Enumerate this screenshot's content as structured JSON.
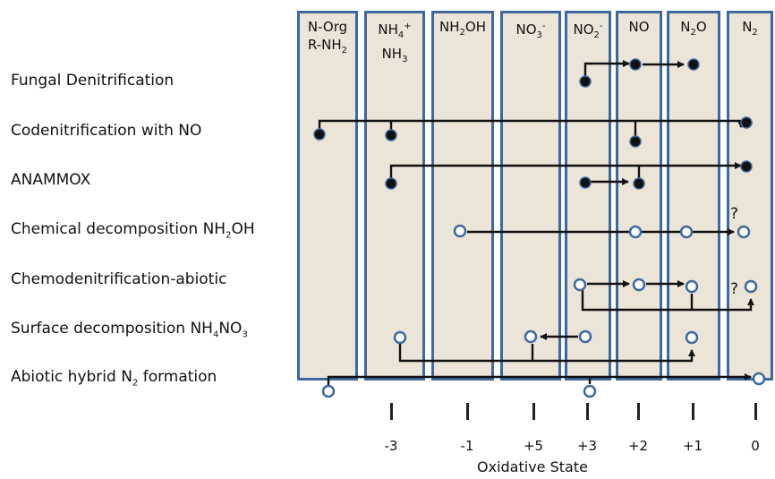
{
  "columns": [
    {
      "id": "n-org",
      "line1": "N-Org",
      "line2_base": "R-NH",
      "line2_sub": "2"
    },
    {
      "id": "nh4",
      "base": "NH",
      "sup": "+",
      "sub": "4",
      "line2_base": "NH",
      "line2_sub": "3"
    },
    {
      "id": "nh2oh",
      "base": "NH",
      "sub": "2",
      "tail": "OH"
    },
    {
      "id": "no3",
      "base": "NO",
      "sub": "3",
      "sup": "-"
    },
    {
      "id": "no2",
      "base": "NO",
      "sub": "2",
      "sup": "-"
    },
    {
      "id": "no",
      "base": "NO"
    },
    {
      "id": "n2o",
      "base": "N",
      "sub": "2",
      "tail": "O"
    },
    {
      "id": "n2",
      "base": "N",
      "sub": "2"
    }
  ],
  "processes": [
    {
      "label": "Fungal Denitrification"
    },
    {
      "label": "Codenitrification with NO"
    },
    {
      "label": "ANAMMOX"
    },
    {
      "label_base": "Chemical decomposition NH",
      "label_sub": "2",
      "label_tail": "OH"
    },
    {
      "label": "Chemodenitrification-abiotic"
    },
    {
      "label_base": "Surface decomposition NH",
      "label_sub": "4",
      "label_mid": "NO",
      "label_sub2": "3"
    },
    {
      "label_base": "Abiotic hybrid N",
      "label_sub": "2",
      "label_tail": " formation"
    }
  ],
  "oxidation_states": [
    "-3",
    "-1",
    "+5",
    "+3",
    "+2",
    "+1",
    "0"
  ],
  "axis_label": "Oxidative State",
  "question_mark": "?",
  "colors": {
    "panel": "#ede4d8",
    "border": "#3c6aa0",
    "filled_node": "#111111",
    "open_node_stroke": "#3c6aa0",
    "arrow": "#111111"
  }
}
